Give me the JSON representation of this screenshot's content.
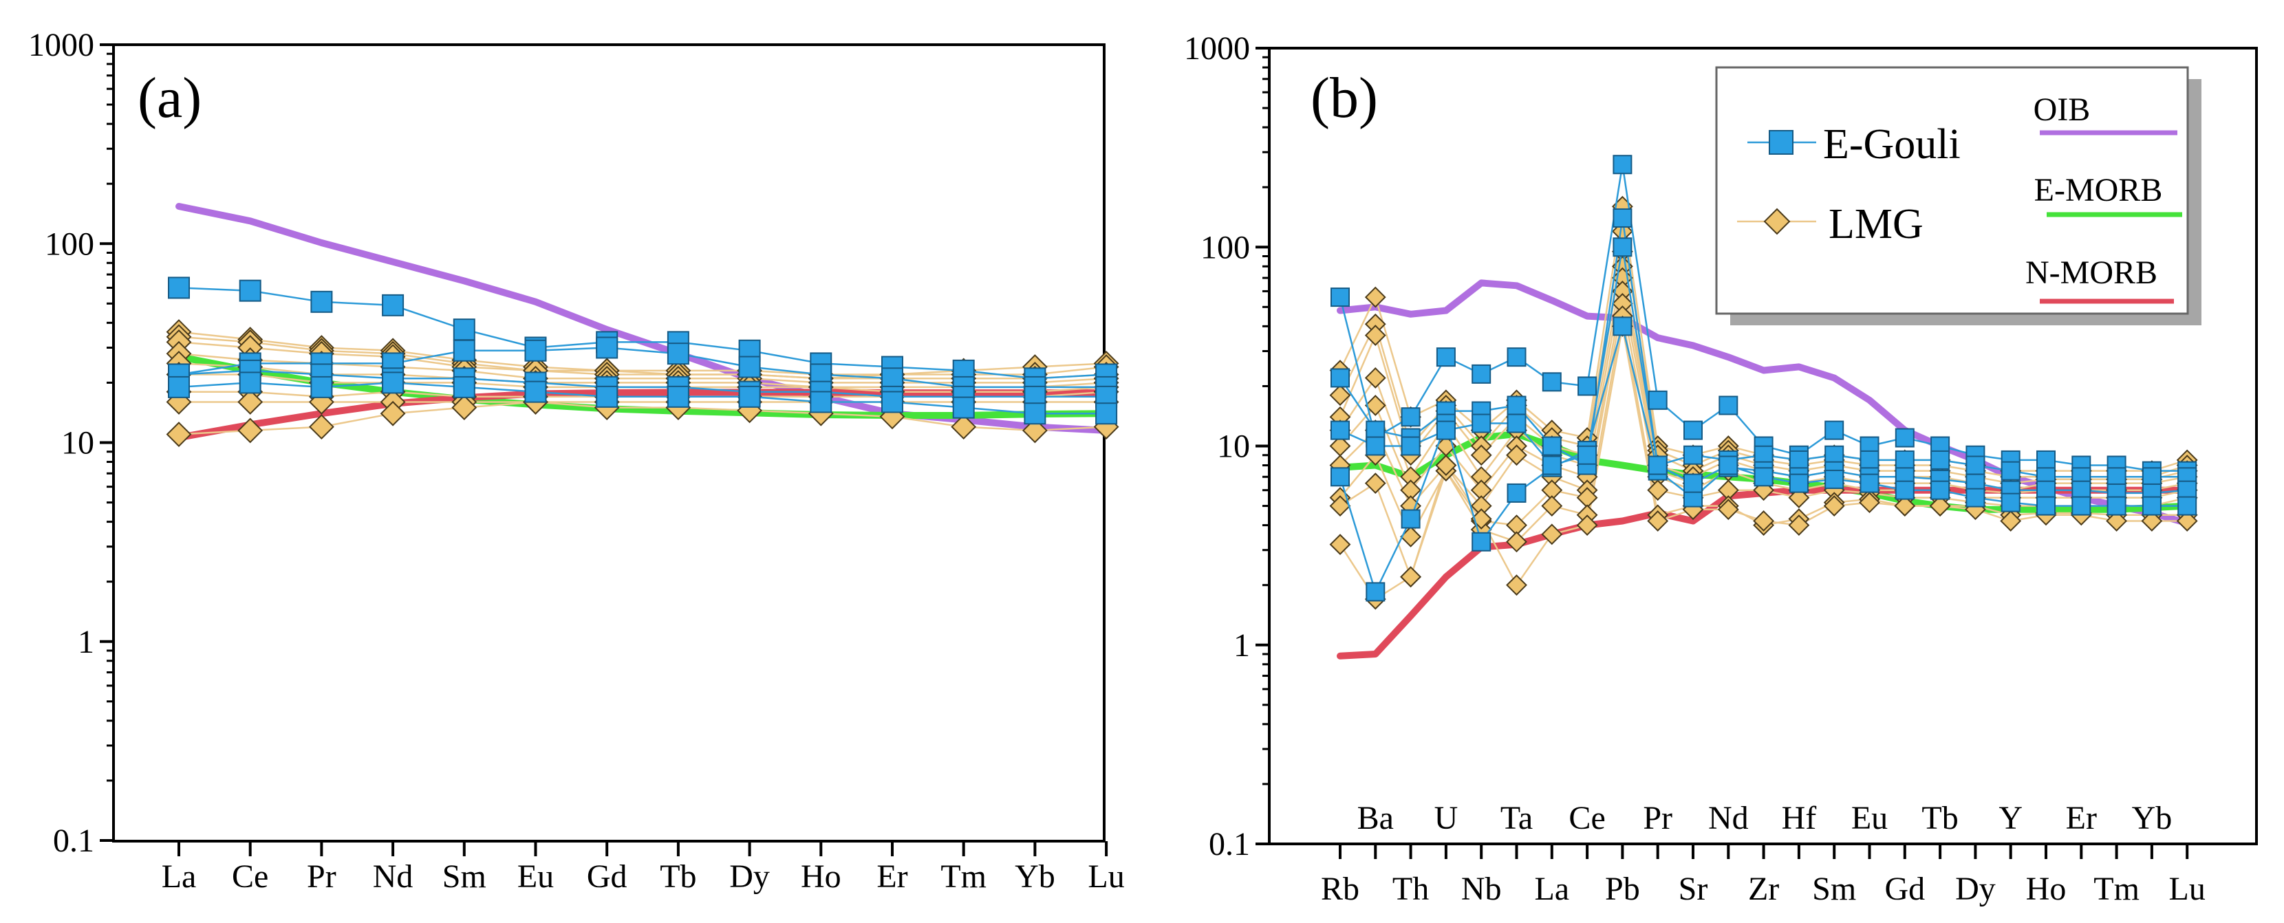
{
  "chart_data": [
    {
      "type": "line",
      "panel_label": "(a)",
      "yscale": "log",
      "ylim": [
        0.1,
        1000
      ],
      "yticks": [
        "0.1",
        "1",
        "10",
        "100",
        "1000"
      ],
      "categories": [
        "La",
        "Ce",
        "Pr",
        "Nd",
        "Sm",
        "Eu",
        "Gd",
        "Tb",
        "Dy",
        "Ho",
        "Er",
        "Tm",
        "Yb",
        "Lu"
      ],
      "references": [
        {
          "name": "OIB",
          "color": "#b06fe0",
          "values": [
            154,
            130,
            101,
            81,
            65,
            51,
            37,
            28,
            21,
            17,
            14,
            13,
            12,
            11.5
          ]
        },
        {
          "name": "E-MORB",
          "color": "#45e23a",
          "values": [
            27,
            23,
            20,
            18,
            16.5,
            15.5,
            14.8,
            14.4,
            14.1,
            13.8,
            13.7,
            13.7,
            13.9,
            14.0
          ]
        },
        {
          "name": "N-MORB",
          "color": "#e0495a",
          "values": [
            10.6,
            12.3,
            14.0,
            15.7,
            16.8,
            17.6,
            17.8,
            17.9,
            17.9,
            17.9,
            17.8,
            17.8,
            17.8,
            17.8
          ]
        }
      ],
      "egouli": [
        [
          60,
          58,
          51,
          49,
          37,
          30,
          32,
          32,
          29,
          25,
          24,
          23,
          21,
          22
        ],
        [
          22,
          25,
          25,
          25,
          29,
          29,
          30,
          28,
          24,
          22,
          21,
          19,
          19,
          19
        ],
        [
          22,
          23,
          22,
          21,
          21,
          20,
          19,
          19,
          18,
          18,
          17,
          17,
          17,
          17
        ],
        [
          19,
          20,
          19,
          20,
          19,
          18,
          17,
          17,
          17,
          16,
          16,
          15,
          14,
          14
        ]
      ],
      "lmg": [
        [
          36,
          33,
          30,
          29,
          26,
          24,
          23,
          23,
          23,
          22,
          22,
          23,
          24,
          25
        ],
        [
          34,
          32,
          29,
          28,
          25,
          23,
          23,
          22,
          22,
          21,
          22,
          22,
          22,
          24
        ],
        [
          32,
          30,
          28,
          27,
          24,
          23,
          22,
          22,
          22,
          21,
          21,
          21,
          21,
          22
        ],
        [
          28,
          26,
          25,
          24,
          23,
          21,
          21,
          21,
          21,
          20,
          20,
          20,
          20,
          21
        ],
        [
          25,
          24,
          22,
          22,
          21,
          20,
          20,
          20,
          20,
          19,
          19,
          19,
          19,
          20
        ],
        [
          22,
          22,
          20,
          20,
          20,
          19,
          19,
          19,
          19,
          19,
          18,
          18,
          18,
          19
        ],
        [
          18,
          18,
          17,
          18,
          17,
          17,
          17,
          17,
          17,
          17,
          17,
          17,
          17,
          18
        ],
        [
          16,
          16,
          16,
          16,
          16,
          16,
          16,
          16,
          16,
          16,
          16,
          16,
          16,
          16
        ],
        [
          11,
          11.5,
          12,
          14,
          15,
          16,
          15,
          15,
          14.5,
          14,
          13.5,
          12,
          11.5,
          12
        ]
      ]
    },
    {
      "type": "line",
      "panel_label": "(b)",
      "yscale": "log",
      "ylim": [
        0.1,
        1000
      ],
      "yticks": [
        "0.1",
        "1",
        "10",
        "100",
        "1000"
      ],
      "categories": [
        "Rb",
        "Ba",
        "Th",
        "U",
        "Nb",
        "Ta",
        "La",
        "Ce",
        "Pb",
        "Pr",
        "Sr",
        "Nd",
        "Zr",
        "Hf",
        "Sm",
        "Eu",
        "Gd",
        "Tb",
        "Dy",
        "Y",
        "Ho",
        "Er",
        "Tm",
        "Yb",
        "Lu"
      ],
      "label_rows": {
        "top": [
          "Ba",
          "U",
          "Ta",
          "Ce",
          "Pr",
          "Nd",
          "Hf",
          "Eu",
          "Tb",
          "Y",
          "Er",
          "Yb"
        ],
        "bottom": [
          "Rb",
          "Th",
          "Nb",
          "La",
          "Pb",
          "Sr",
          "Zr",
          "Sm",
          "Gd",
          "Dy",
          "Ho",
          "Tm",
          "Lu"
        ]
      },
      "references": [
        {
          "name": "OIB",
          "color": "#b06fe0",
          "values": [
            48,
            50,
            46,
            48,
            66,
            64,
            54,
            45,
            44,
            35,
            32,
            28,
            24,
            25,
            22,
            17,
            12,
            10,
            8.5,
            7,
            6.2,
            5.5,
            5,
            4.6,
            4.1
          ]
        },
        {
          "name": "E-MORB",
          "color": "#45e23a",
          "values": [
            7.8,
            8,
            7,
            9,
            11,
            11.5,
            10,
            8.5,
            8,
            7.5,
            7.2,
            7,
            6.8,
            6.5,
            6.2,
            5.8,
            5.3,
            5,
            4.8,
            4.8,
            4.8,
            4.8,
            4.8,
            4.9,
            5
          ]
        },
        {
          "name": "N-MORB",
          "color": "#e0495a",
          "values": [
            0.88,
            0.9,
            1.4,
            2.2,
            3.1,
            3.2,
            3.6,
            4,
            4.2,
            4.6,
            4.2,
            5.6,
            5.8,
            6,
            6,
            6,
            6,
            6,
            6,
            6,
            6,
            6,
            6,
            6,
            6
          ]
        }
      ],
      "egouli": [
        [
          56,
          11,
          14,
          28,
          23,
          28,
          21,
          20,
          260,
          17,
          12,
          16,
          10,
          9,
          12,
          10,
          11,
          10,
          9,
          8.5,
          8.5,
          8,
          8,
          7.5,
          7.5
        ],
        [
          22,
          12,
          11,
          15,
          15,
          16,
          10,
          8,
          140,
          8,
          9,
          8.5,
          9,
          8.5,
          9,
          8.5,
          8.5,
          8.5,
          8,
          7.5,
          7,
          7,
          7,
          7,
          7
        ],
        [
          7,
          1.85,
          4.3,
          13,
          3.3,
          5.8,
          7.8,
          9.5,
          40,
          7.5,
          5.5,
          7.8,
          7.5,
          7,
          7.5,
          7,
          7,
          6.8,
          6.5,
          6,
          6,
          6,
          5.8,
          5.8,
          6
        ],
        [
          12,
          10,
          10,
          12,
          13,
          13,
          8,
          9,
          100,
          8,
          6.5,
          8,
          7,
          6.5,
          6.8,
          6.5,
          6,
          6,
          5.5,
          5.2,
          5,
          5,
          5,
          5,
          5
        ]
      ],
      "lmg": [
        [
          24,
          56,
          14,
          17,
          12,
          17,
          12,
          11,
          160,
          10,
          9,
          10,
          9,
          8.5,
          9,
          8.5,
          8.5,
          8.5,
          8,
          7.5,
          7.5,
          7.5,
          7.5,
          7.5,
          8.5
        ],
        [
          18,
          41,
          10,
          16,
          10,
          16,
          11,
          10,
          120,
          9.5,
          8,
          9.5,
          8.5,
          8,
          8.5,
          8,
          8,
          8,
          7.5,
          7,
          7,
          7,
          7,
          7,
          8
        ],
        [
          14,
          36,
          9,
          15,
          9,
          14,
          10,
          9,
          95,
          9,
          7.5,
          9,
          8,
          7.5,
          8,
          7.5,
          7.5,
          7.5,
          7,
          6.5,
          6.8,
          6.8,
          6.8,
          6.8,
          7.5
        ],
        [
          12,
          22,
          7,
          13,
          7,
          12,
          9,
          8,
          80,
          8,
          7,
          8.5,
          7.5,
          7,
          7.5,
          7,
          7,
          7,
          6.5,
          6,
          6.5,
          6.5,
          6.5,
          6.5,
          7
        ],
        [
          10,
          16,
          6,
          10,
          6,
          10,
          8,
          7,
          70,
          7.5,
          6.5,
          8,
          7,
          6.5,
          7,
          6.5,
          6.5,
          6.5,
          6,
          5.8,
          6,
          6,
          6,
          6,
          6.5
        ],
        [
          8,
          12,
          5,
          8,
          5,
          9,
          7,
          6,
          60,
          7,
          6,
          7.5,
          6.5,
          6,
          6.5,
          6,
          6,
          6,
          5.5,
          5.5,
          5.5,
          5.5,
          5.5,
          5.5,
          6
        ],
        [
          5.5,
          9,
          3.5,
          7.5,
          4.2,
          4,
          6,
          5.5,
          52,
          6,
          5.5,
          6,
          6,
          5.5,
          6,
          5.8,
          5.5,
          5.5,
          5.2,
          5,
          5,
          5,
          5,
          5,
          5.5
        ],
        [
          5,
          6.5,
          2.2,
          7.5,
          3.8,
          3.3,
          5,
          4.5,
          45,
          4.5,
          5,
          5,
          4,
          4.3,
          5.2,
          5.4,
          5,
          5,
          5,
          4.5,
          4.6,
          4.6,
          4.5,
          4.5,
          4.5
        ],
        [
          3.2,
          1.7,
          2.2,
          8,
          4.3,
          2,
          3.6,
          4,
          40,
          4.2,
          4.8,
          4.8,
          4.2,
          4,
          5,
          5.2,
          5,
          5,
          4.8,
          4.2,
          4.5,
          4.5,
          4.2,
          4.2,
          4.2
        ]
      ],
      "legend": {
        "egouli": "E-Gouli",
        "lmg": "LMG",
        "oib": "OIB",
        "emorb": "E-MORB",
        "nmorb": "N-MORB"
      }
    }
  ],
  "colors": {
    "egouli_line": "#2c9ad8",
    "egouli_fill": "#2a9fe3",
    "lmg_line": "#ecc88c",
    "lmg_fill": "#efc46f"
  }
}
